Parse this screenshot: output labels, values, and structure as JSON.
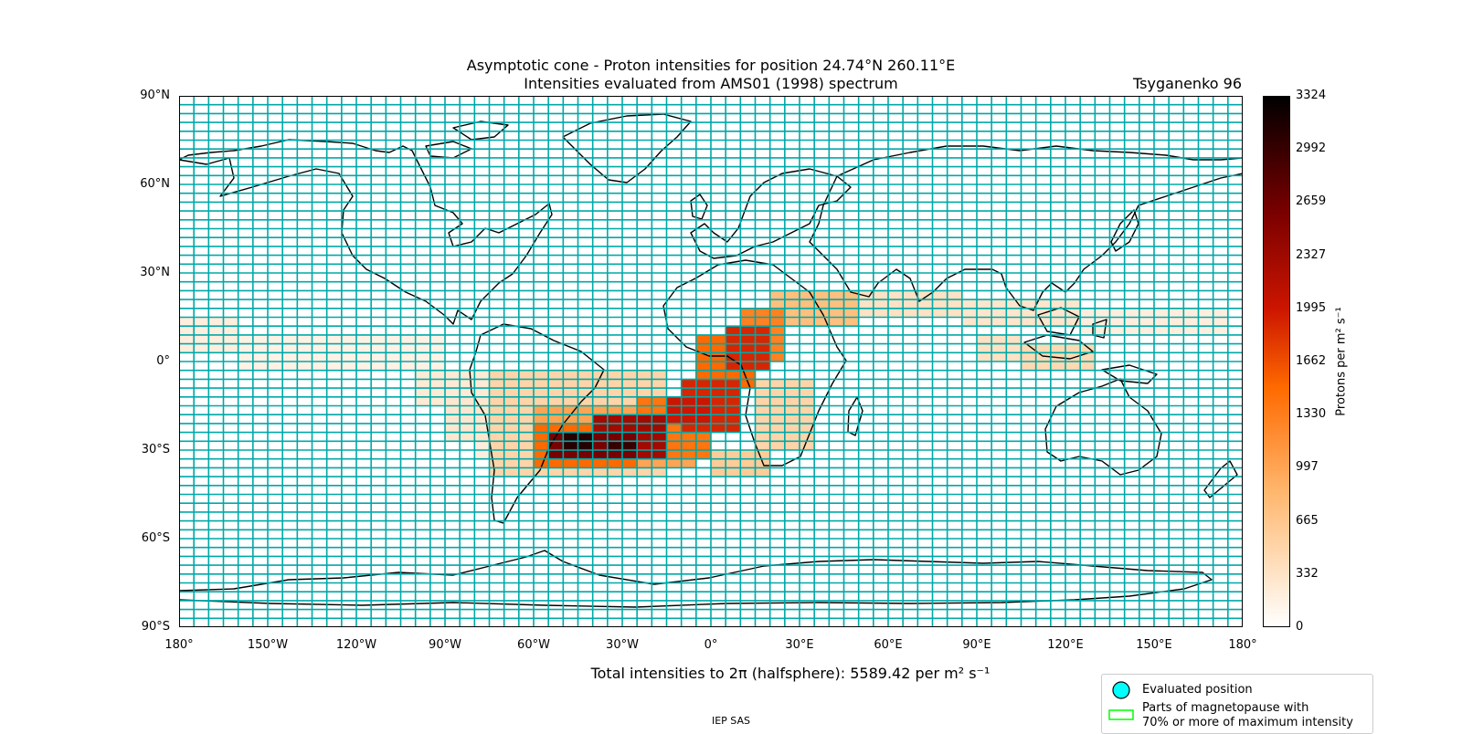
{
  "map": {
    "title_line1": "Asymptotic cone - Proton intensities for position 24.74°N 260.11°E",
    "title_line2": "Intensities evaluated from AMS01 (1998) spectrum",
    "model_label": "Tsyganenko 96",
    "projection": "PlateCarree",
    "extent": {
      "lon": [
        -180,
        180
      ],
      "lat": [
        -90,
        90
      ]
    },
    "grid_step_deg": {
      "lon": 5,
      "lat": 3
    },
    "colors": {
      "grid": "#00a8a8",
      "coast": "#000000",
      "cmap": "gist_heat_r"
    },
    "lat_ticks": [
      "90°N",
      "60°N",
      "30°N",
      "0°",
      "30°S",
      "60°S",
      "90°S"
    ],
    "lon_ticks": [
      "180°",
      "150°W",
      "120°W",
      "90°W",
      "60°W",
      "30°W",
      "0°",
      "30°E",
      "60°E",
      "90°E",
      "120°E",
      "150°E",
      "180°"
    ]
  },
  "colorbar": {
    "label": "Protons per m² s⁻¹",
    "min": 0,
    "max": 3324,
    "ticks": [
      "3324",
      "2992",
      "2659",
      "2327",
      "1995",
      "1662",
      "1330",
      "997",
      "665",
      "332",
      "0"
    ]
  },
  "total_text": "Total intensities to 2π (halfsphere): 5589.42 per m² s⁻¹",
  "legend": {
    "evaluated_label": "Evaluated position",
    "magnetopause_line1": "Parts of magnetopause with",
    "magnetopause_line2": "70% or more of maximum intensity",
    "evaluated_color": "#00ffff",
    "magnetopause_color": "#00ff00"
  },
  "credit": "IEP SAS",
  "chart_data": {
    "type": "heatmap",
    "value_unit": "Protons per m² s⁻¹",
    "vmin": 0,
    "vmax": 3324,
    "cell_size_deg": {
      "lon": 5,
      "lat": 3
    },
    "note_cells": "approximate intensity regions read from the map (lon/lat ranges in degrees)",
    "regions": [
      {
        "lon": [
          -180,
          -160
        ],
        "lat": [
          3,
          15
        ],
        "value": 200
      },
      {
        "lon": [
          -160,
          -90
        ],
        "lat": [
          -3,
          9
        ],
        "value": 150
      },
      {
        "lon": [
          -100,
          -70
        ],
        "lat": [
          -15,
          -3
        ],
        "value": 250
      },
      {
        "lon": [
          -90,
          -60
        ],
        "lat": [
          -27,
          -12
        ],
        "value": 280
      },
      {
        "lon": [
          -80,
          -60
        ],
        "lat": [
          -33,
          -24
        ],
        "value": 200
      },
      {
        "lon": [
          -75,
          -15
        ],
        "lat": [
          -39,
          -3
        ],
        "value": 500
      },
      {
        "lon": [
          -60,
          -5
        ],
        "lat": [
          -36,
          -15
        ],
        "value": 1000
      },
      {
        "lon": [
          -60,
          -25
        ],
        "lat": [
          -36,
          -21
        ],
        "value": 1500
      },
      {
        "lon": [
          -25,
          0
        ],
        "lat": [
          -33,
          -12
        ],
        "value": 1400
      },
      {
        "lon": [
          -10,
          10
        ],
        "lat": [
          -24,
          -6
        ],
        "value": 1900
      },
      {
        "lon": [
          -5,
          15
        ],
        "lat": [
          -9,
          9
        ],
        "value": 1500
      },
      {
        "lon": [
          10,
          25
        ],
        "lat": [
          0,
          18
        ],
        "value": 1300
      },
      {
        "lon": [
          20,
          50
        ],
        "lat": [
          12,
          24
        ],
        "value": 750
      },
      {
        "lon": [
          -55,
          -25
        ],
        "lat": [
          -33,
          -24
        ],
        "value": 2600
      },
      {
        "lon": [
          -40,
          -15
        ],
        "lat": [
          -33,
          -18
        ],
        "value": 2300
      },
      {
        "lon": [
          -15,
          0
        ],
        "lat": [
          -21,
          -12
        ],
        "value": 2000
      },
      {
        "lon": [
          5,
          20
        ],
        "lat": [
          -3,
          12
        ],
        "value": 1900
      },
      {
        "lon": [
          -50,
          -40
        ],
        "lat": [
          -30,
          -24
        ],
        "value": 3100
      },
      {
        "lon": [
          -35,
          -25
        ],
        "lat": [
          -30,
          -27
        ],
        "value": 3000
      },
      {
        "lon": [
          0,
          20
        ],
        "lat": [
          -39,
          -30
        ],
        "value": 600
      },
      {
        "lon": [
          15,
          35
        ],
        "lat": [
          -30,
          -6
        ],
        "value": 500
      },
      {
        "lon": [
          50,
          85
        ],
        "lat": [
          15,
          24
        ],
        "value": 350
      },
      {
        "lon": [
          85,
          125
        ],
        "lat": [
          12,
          21
        ],
        "value": 300
      },
      {
        "lon": [
          125,
          175
        ],
        "lat": [
          9,
          18
        ],
        "value": 200
      },
      {
        "lon": [
          105,
          130
        ],
        "lat": [
          -3,
          6
        ],
        "value": 450
      },
      {
        "lon": [
          90,
          105
        ],
        "lat": [
          0,
          9
        ],
        "value": 350
      }
    ]
  }
}
